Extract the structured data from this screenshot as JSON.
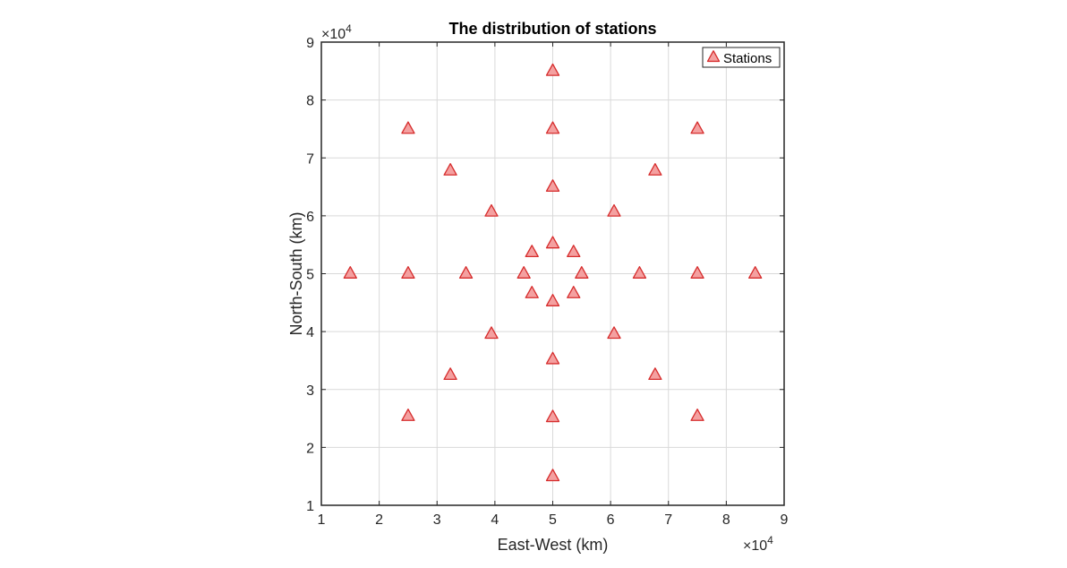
{
  "chart_data": {
    "type": "scatter",
    "title": "The distribution of stations",
    "xlabel": "East-West (km)",
    "ylabel": "North-South (km)",
    "xlim": [
      10000,
      90000
    ],
    "ylim": [
      10000,
      90000
    ],
    "x_ticks": [
      1,
      2,
      3,
      4,
      5,
      6,
      7,
      8,
      9
    ],
    "y_ticks": [
      1,
      2,
      3,
      4,
      5,
      6,
      7,
      8,
      9
    ],
    "x_exponent": {
      "base": "×10",
      "power": "4"
    },
    "y_exponent": {
      "base": "×10",
      "power": "4"
    },
    "grid": true,
    "legend_position": "top-right",
    "marker": "triangle",
    "colors": {
      "marker_fill": "#f4a0a0",
      "marker_edge": "#d62c2c",
      "grid": "#d9d9d9",
      "axis": "#262626"
    },
    "series": [
      {
        "name": "Stations",
        "points": [
          [
            50000,
            85000
          ],
          [
            50000,
            75000
          ],
          [
            25000,
            75000
          ],
          [
            75000,
            75000
          ],
          [
            32300,
            67800
          ],
          [
            67700,
            67800
          ],
          [
            50000,
            65000
          ],
          [
            39400,
            60700
          ],
          [
            60600,
            60700
          ],
          [
            50000,
            55200
          ],
          [
            46400,
            53700
          ],
          [
            53600,
            53700
          ],
          [
            15000,
            50000
          ],
          [
            25000,
            50000
          ],
          [
            35000,
            50000
          ],
          [
            45000,
            50000
          ],
          [
            55000,
            50000
          ],
          [
            65000,
            50000
          ],
          [
            75000,
            50000
          ],
          [
            85000,
            50000
          ],
          [
            46400,
            46600
          ],
          [
            53600,
            46600
          ],
          [
            50000,
            45200
          ],
          [
            39400,
            39600
          ],
          [
            60600,
            39600
          ],
          [
            50000,
            35200
          ],
          [
            32300,
            32500
          ],
          [
            67700,
            32500
          ],
          [
            25000,
            25400
          ],
          [
            75000,
            25400
          ],
          [
            50000,
            25200
          ],
          [
            50000,
            15000
          ]
        ]
      }
    ]
  }
}
